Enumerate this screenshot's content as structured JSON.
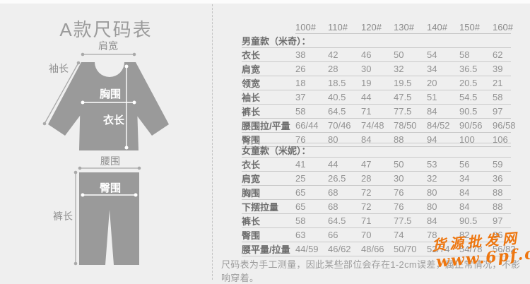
{
  "diagram": {
    "title": "A款尺码表",
    "labels": {
      "shoulder": "肩宽",
      "sleeve": "袖长",
      "chest": "胸围",
      "length": "衣长",
      "waist": "腰围",
      "hip": "臀围",
      "pants": "裤长"
    }
  },
  "table": {
    "size_columns": [
      "100#",
      "110#",
      "120#",
      "130#",
      "140#",
      "150#",
      "160#"
    ],
    "sections": [
      {
        "title": "男童款（米奇）：",
        "rows": [
          {
            "label": "衣长",
            "values": [
              "38",
              "42",
              "46",
              "50",
              "54",
              "58",
              "62"
            ]
          },
          {
            "label": "肩宽",
            "values": [
              "26",
              "28",
              "30",
              "32",
              "34",
              "36.5",
              "39"
            ]
          },
          {
            "label": "领宽",
            "values": [
              "18",
              "18.5",
              "19",
              "19.5",
              "20",
              "20.5",
              "21"
            ]
          },
          {
            "label": "袖长",
            "values": [
              "37",
              "40.5",
              "44",
              "47.5",
              "51",
              "54.5",
              "58"
            ]
          },
          {
            "label": "裤长",
            "values": [
              "58",
              "64.5",
              "71",
              "77.5",
              "84",
              "90.5",
              "97"
            ]
          },
          {
            "label": "腰围拉/平量",
            "values": [
              "66/44",
              "70/46",
              "74/48",
              "78/50",
              "84/52",
              "90/56",
              "96/58"
            ]
          },
          {
            "label": "臀围",
            "values": [
              "76",
              "80",
              "84",
              "88",
              "94",
              "100",
              "106"
            ]
          }
        ]
      },
      {
        "title": "女童款（米妮）：",
        "rows": [
          {
            "label": "衣长",
            "values": [
              "41",
              "44",
              "47",
              "50",
              "53",
              "56",
              "59"
            ]
          },
          {
            "label": "肩宽",
            "values": [
              "25",
              "26.5",
              "28",
              "30",
              "32",
              "34",
              "36"
            ]
          },
          {
            "label": "胸围",
            "values": [
              "65",
              "68",
              "72",
              "76",
              "80",
              "84",
              "88"
            ]
          },
          {
            "label": "下摆拉量",
            "values": [
              "65",
              "68",
              "72",
              "76",
              "80",
              "84",
              "88"
            ]
          },
          {
            "label": "裤长",
            "values": [
              "58",
              "64.5",
              "71",
              "77.5",
              "84",
              "90.5",
              "97"
            ]
          },
          {
            "label": "臀围",
            "values": [
              "63",
              "66",
              "70",
              "74",
              "78",
              "82",
              "86"
            ]
          },
          {
            "label": "腰平量/拉量",
            "values": [
              "44/59",
              "46/62",
              "48/66",
              "50/70",
              "52/74",
              "54/78",
              "56/82"
            ]
          }
        ]
      }
    ]
  },
  "note": "尺码表为手工测量，因此某些部位会存在1-2cm误差，属正常情况，不影响穿着。",
  "watermark": {
    "line1": "货源批发网",
    "line2": "www.6pf.cn",
    "color": "#ee760f"
  },
  "colors": {
    "background": "#efefef",
    "garment_gray": "#9a9a9a",
    "table_border": "#c9c9c9",
    "label_text": "#6e6e6e",
    "value_text": "#929292",
    "watermark_orange": "#ee760f"
  }
}
